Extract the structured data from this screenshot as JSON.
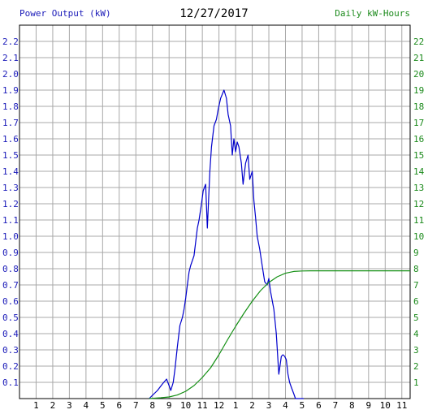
{
  "header": {
    "left_label": "Power Output (kW)",
    "date": "12/27/2017",
    "right_label": "Daily kW-Hours"
  },
  "chart_data": {
    "type": "line",
    "title": "12/27/2017",
    "xlabel": "",
    "ylabel": "Power Output (kW)",
    "y2label": "Daily kW-Hours",
    "x_tick_labels": [
      "1",
      "2",
      "3",
      "4",
      "5",
      "6",
      "7",
      "8",
      "9",
      "10",
      "11",
      "12",
      "1",
      "2",
      "3",
      "4",
      "5",
      "6",
      "7",
      "8",
      "9",
      "10",
      "11"
    ],
    "xlim": [
      0,
      23.5
    ],
    "ylim": [
      0,
      2.3
    ],
    "y_ticks": [
      0.1,
      0.2,
      0.3,
      0.4,
      0.5,
      0.6,
      0.7,
      0.8,
      0.9,
      1.0,
      1.1,
      1.2,
      1.3,
      1.4,
      1.5,
      1.6,
      1.7,
      1.8,
      1.9,
      2.0,
      2.1,
      2.2
    ],
    "y_tick_labels": [
      "0.1",
      "0.2",
      "0.3",
      "0.4",
      "0.5",
      "0.6",
      "0.7",
      "0.8",
      "0.9",
      "1.0",
      "1.1",
      "1.2",
      "1.3",
      "1.4",
      "1.5",
      "1.6",
      "1.7",
      "1.8",
      "1.9",
      "2.0",
      "2.1",
      "2.2"
    ],
    "y2lim": [
      0,
      23
    ],
    "y2_ticks": [
      1,
      2,
      3,
      4,
      5,
      6,
      7,
      8,
      9,
      10,
      11,
      12,
      13,
      14,
      15,
      16,
      17,
      18,
      19,
      20,
      21,
      22
    ],
    "grid": true,
    "series": [
      {
        "axis": "left",
        "color": "#0000cc",
        "x": [
          7.8,
          8.0,
          8.3,
          8.6,
          8.85,
          9.0,
          9.1,
          9.25,
          9.35,
          9.5,
          9.65,
          9.8,
          9.9,
          10.0,
          10.1,
          10.2,
          10.3,
          10.5,
          10.7,
          10.8,
          10.95,
          11.05,
          11.2,
          11.3,
          11.45,
          11.55,
          11.7,
          11.85,
          11.95,
          12.1,
          12.3,
          12.45,
          12.55,
          12.7,
          12.8,
          12.9,
          13.0,
          13.1,
          13.2,
          13.35,
          13.45,
          13.6,
          13.75,
          13.85,
          14.0,
          14.1,
          14.2,
          14.3,
          14.45,
          14.6,
          14.75,
          14.9,
          15.0,
          15.1,
          15.3,
          15.45,
          15.6,
          15.75,
          15.85,
          15.95,
          16.05,
          16.15,
          16.25,
          16.35,
          16.5,
          16.6,
          16.7,
          16.8,
          16.9,
          17.0,
          17.05,
          17.1
        ],
        "y": [
          0.0,
          0.02,
          0.05,
          0.09,
          0.12,
          0.08,
          0.05,
          0.1,
          0.18,
          0.32,
          0.45,
          0.5,
          0.55,
          0.62,
          0.7,
          0.78,
          0.82,
          0.88,
          1.05,
          1.1,
          1.2,
          1.28,
          1.32,
          1.05,
          1.4,
          1.55,
          1.68,
          1.72,
          1.78,
          1.85,
          1.9,
          1.85,
          1.75,
          1.68,
          1.5,
          1.6,
          1.52,
          1.58,
          1.55,
          1.45,
          1.32,
          1.45,
          1.5,
          1.35,
          1.4,
          1.22,
          1.12,
          1.0,
          0.92,
          0.82,
          0.72,
          0.7,
          0.74,
          0.66,
          0.55,
          0.4,
          0.15,
          0.26,
          0.27,
          0.26,
          0.24,
          0.15,
          0.1,
          0.07,
          0.03,
          0.0,
          0.0,
          0.0,
          0.0,
          0.0,
          0.0,
          0.0
        ]
      },
      {
        "axis": "right",
        "color": "#138f13",
        "x": [
          7.8,
          8.5,
          9.0,
          9.5,
          10.0,
          10.5,
          11.0,
          11.5,
          12.0,
          12.5,
          13.0,
          13.5,
          14.0,
          14.5,
          15.0,
          15.5,
          16.0,
          16.5,
          17.0,
          17.5,
          18.0,
          19.0,
          20.0,
          21.0,
          22.0,
          23.0,
          23.5
        ],
        "y": [
          0,
          0.05,
          0.1,
          0.22,
          0.45,
          0.8,
          1.3,
          1.9,
          2.7,
          3.6,
          4.45,
          5.25,
          6.0,
          6.65,
          7.15,
          7.5,
          7.72,
          7.83,
          7.86,
          7.87,
          7.87,
          7.87,
          7.87,
          7.87,
          7.87,
          7.87,
          7.87
        ]
      }
    ]
  }
}
